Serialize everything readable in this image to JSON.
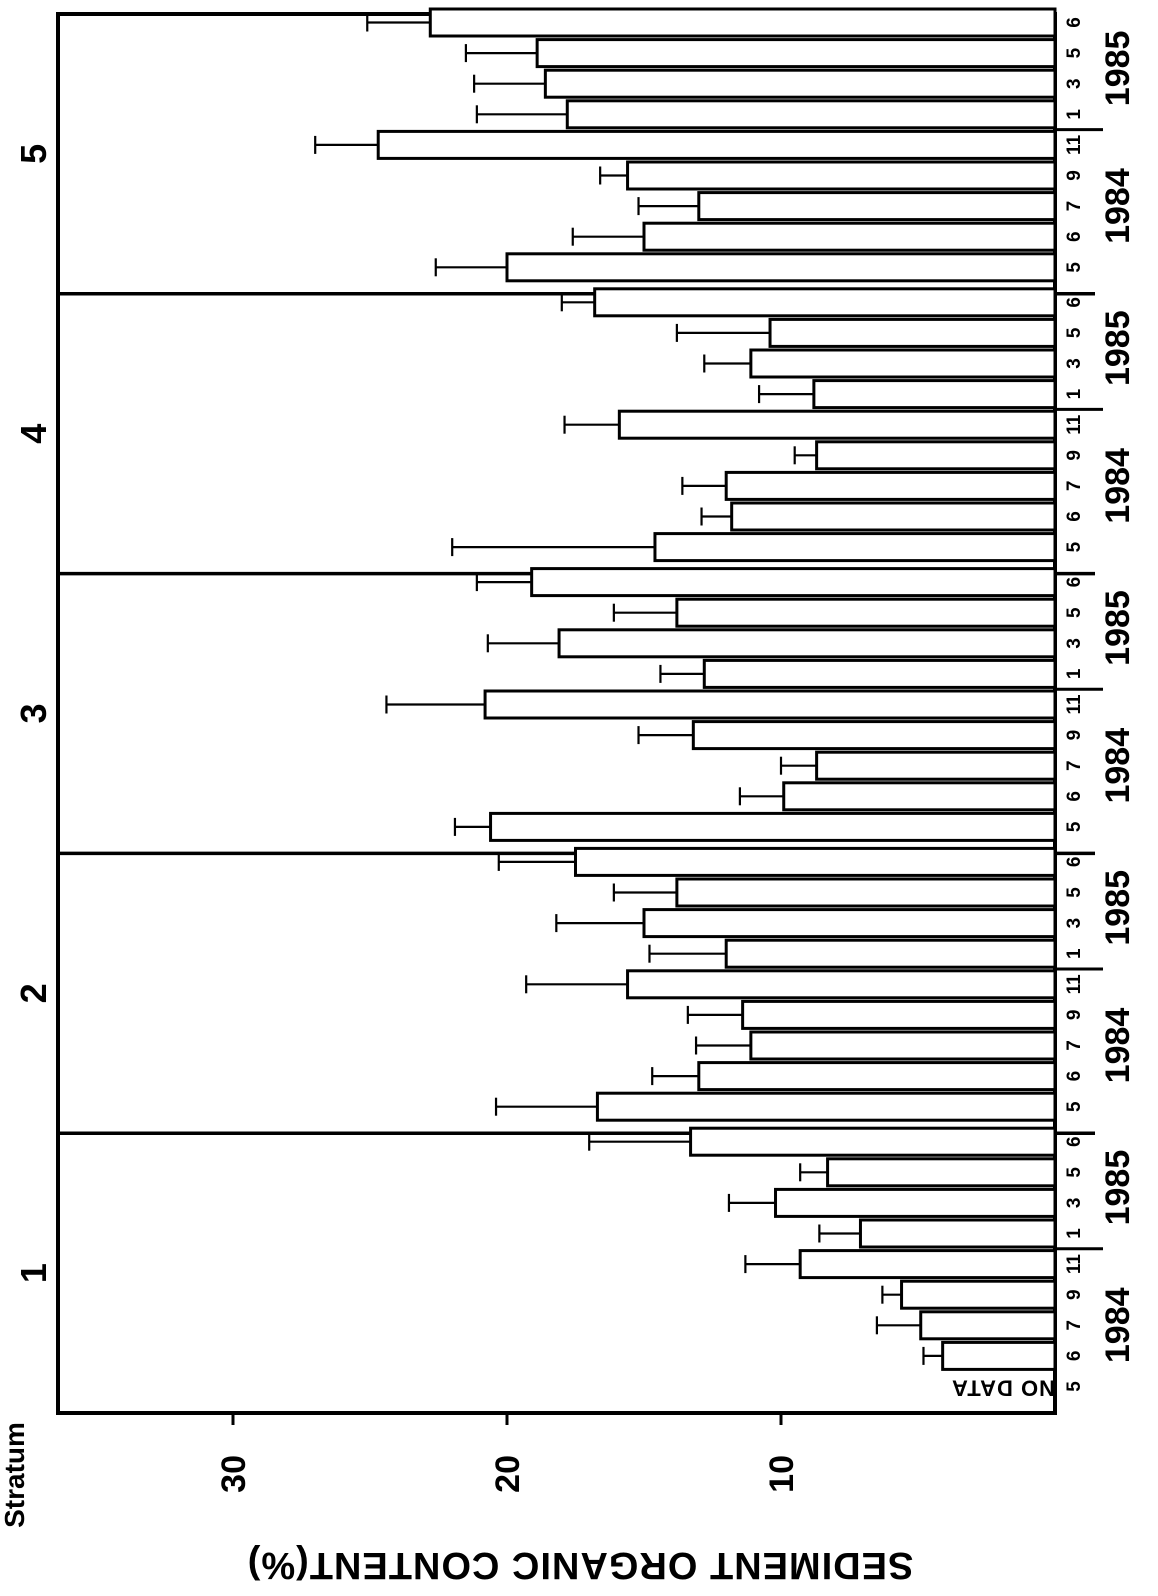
{
  "chart_data": {
    "type": "bar",
    "orientation": "horizontal",
    "ylabel": "SEDIMENT ORGANIC CONTENT(%)",
    "stratum_label": "Stratum",
    "axis_ticks": [
      "30",
      "20",
      "10"
    ],
    "tick_values": [
      30,
      20,
      10
    ],
    "value_range": [
      0,
      36
    ],
    "no_data_label": "NO DATA",
    "strata": [
      {
        "stratum": "1",
        "groups": [
          {
            "year": "1984",
            "bars": [
              {
                "month": "5",
                "value": null,
                "error": null
              },
              {
                "month": "6",
                "value": 4.1,
                "error": 0.7
              },
              {
                "month": "7",
                "value": 4.9,
                "error": 1.6
              },
              {
                "month": "9",
                "value": 5.6,
                "error": 0.7
              },
              {
                "month": "11",
                "value": 9.3,
                "error": 2.0
              }
            ]
          },
          {
            "year": "1985",
            "bars": [
              {
                "month": "1",
                "value": 7.1,
                "error": 1.5
              },
              {
                "month": "3",
                "value": 10.2,
                "error": 1.7
              },
              {
                "month": "5",
                "value": 8.3,
                "error": 1.0
              },
              {
                "month": "6",
                "value": 13.3,
                "error": 3.7
              }
            ]
          }
        ]
      },
      {
        "stratum": "2",
        "groups": [
          {
            "year": "1984",
            "bars": [
              {
                "month": "5",
                "value": 16.7,
                "error": 3.7
              },
              {
                "month": "6",
                "value": 13.0,
                "error": 1.7
              },
              {
                "month": "7",
                "value": 11.1,
                "error": 2.0
              },
              {
                "month": "9",
                "value": 11.4,
                "error": 2.0
              },
              {
                "month": "11",
                "value": 15.6,
                "error": 3.7
              }
            ]
          },
          {
            "year": "1985",
            "bars": [
              {
                "month": "1",
                "value": 12.0,
                "error": 2.8
              },
              {
                "month": "3",
                "value": 15.0,
                "error": 3.2
              },
              {
                "month": "5",
                "value": 13.8,
                "error": 2.3
              },
              {
                "month": "6",
                "value": 17.5,
                "error": 2.8
              }
            ]
          }
        ]
      },
      {
        "stratum": "3",
        "groups": [
          {
            "year": "1984",
            "bars": [
              {
                "month": "5",
                "value": 20.6,
                "error": 1.3
              },
              {
                "month": "6",
                "value": 9.9,
                "error": 1.6
              },
              {
                "month": "7",
                "value": 8.7,
                "error": 1.3
              },
              {
                "month": "9",
                "value": 13.2,
                "error": 2.0
              },
              {
                "month": "11",
                "value": 20.8,
                "error": 3.6
              }
            ]
          },
          {
            "year": "1985",
            "bars": [
              {
                "month": "1",
                "value": 12.8,
                "error": 1.6
              },
              {
                "month": "3",
                "value": 18.1,
                "error": 2.6
              },
              {
                "month": "5",
                "value": 13.8,
                "error": 2.3
              },
              {
                "month": "6",
                "value": 19.1,
                "error": 2.0
              }
            ]
          }
        ]
      },
      {
        "stratum": "4",
        "groups": [
          {
            "year": "1984",
            "bars": [
              {
                "month": "5",
                "value": 14.6,
                "error": 7.4
              },
              {
                "month": "6",
                "value": 11.8,
                "error": 1.1
              },
              {
                "month": "7",
                "value": 12.0,
                "error": 1.6
              },
              {
                "month": "9",
                "value": 8.7,
                "error": 0.8
              },
              {
                "month": "11",
                "value": 15.9,
                "error": 2.0
              }
            ]
          },
          {
            "year": "1985",
            "bars": [
              {
                "month": "1",
                "value": 8.8,
                "error": 2.0
              },
              {
                "month": "3",
                "value": 11.1,
                "error": 1.7
              },
              {
                "month": "5",
                "value": 10.4,
                "error": 3.4
              },
              {
                "month": "6",
                "value": 16.8,
                "error": 1.2
              }
            ]
          }
        ]
      },
      {
        "stratum": "5",
        "groups": [
          {
            "year": "1984",
            "bars": [
              {
                "month": "5",
                "value": 20.0,
                "error": 2.6
              },
              {
                "month": "6",
                "value": 15.0,
                "error": 2.6
              },
              {
                "month": "7",
                "value": 13.0,
                "error": 2.2
              },
              {
                "month": "9",
                "value": 15.6,
                "error": 1.0
              },
              {
                "month": "11",
                "value": 24.7,
                "error": 2.3
              }
            ]
          },
          {
            "year": "1985",
            "bars": [
              {
                "month": "1",
                "value": 17.8,
                "error": 3.3
              },
              {
                "month": "3",
                "value": 18.6,
                "error": 2.6
              },
              {
                "month": "5",
                "value": 18.9,
                "error": 2.6
              },
              {
                "month": "6",
                "value": 22.8,
                "error": 2.3
              }
            ]
          }
        ]
      }
    ]
  }
}
